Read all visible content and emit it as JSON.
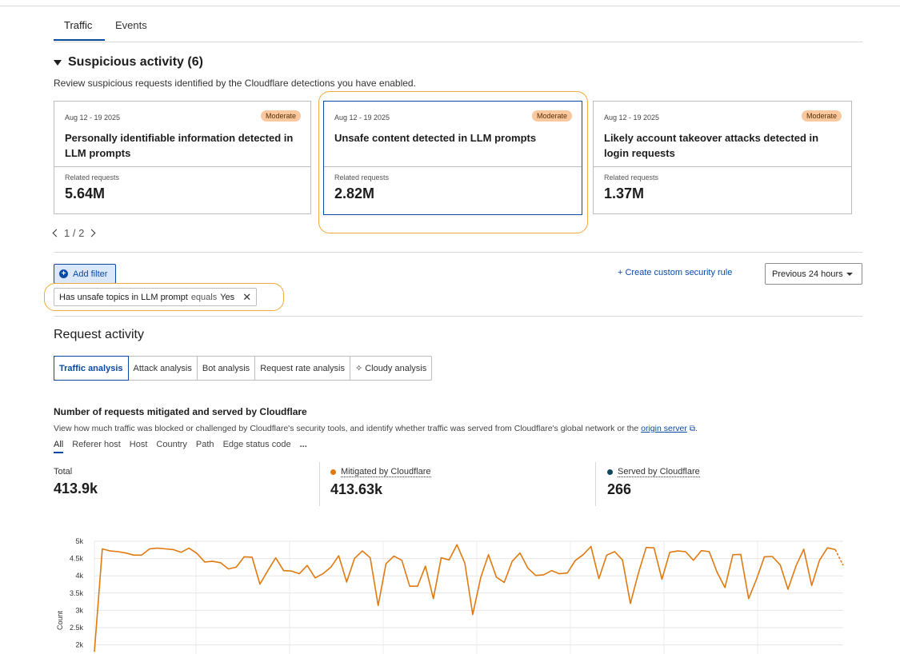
{
  "tabs": [
    {
      "label": "Traffic",
      "active": true
    },
    {
      "label": "Events",
      "active": false
    }
  ],
  "suspicious": {
    "heading": "Suspicious activity (6)",
    "description": "Review suspicious requests identified by the Cloudflare detections you have enabled.",
    "cards": [
      {
        "date": "Aug 12 - 19 2025",
        "badge": "Moderate",
        "title": "Personally identifiable information detected in LLM prompts",
        "related_label": "Related requests",
        "value": "5.64M"
      },
      {
        "date": "Aug 12 - 19 2025",
        "badge": "Moderate",
        "title": "Unsafe content detected in LLM prompts",
        "related_label": "Related requests",
        "value": "2.82M"
      },
      {
        "date": "Aug 12 - 19 2025",
        "badge": "Moderate",
        "title": "Likely account takeover attacks detected in login requests",
        "related_label": "Related requests",
        "value": "1.37M"
      }
    ],
    "pager": "1 / 2"
  },
  "filters": {
    "add_label": "Add filter",
    "chip": {
      "field": "Has unsafe topics in LLM prompt",
      "op": "equals",
      "value": "Yes"
    },
    "create_rule": "+ Create custom security rule",
    "time_range": "Previous 24 hours"
  },
  "request_activity": {
    "title": "Request activity",
    "segments": [
      "Traffic analysis",
      "Attack analysis",
      "Bot analysis",
      "Request rate analysis",
      "Cloudy analysis"
    ]
  },
  "chart_section": {
    "title": "Number of requests mitigated and served by Cloudflare",
    "desc": "View how much traffic was blocked or challenged by Cloudflare's security tools, and identify whether traffic was served from Cloudflare's global network or the",
    "link": "origin server",
    "desc_end": ".",
    "subtabs": [
      "All",
      "Referer host",
      "Host",
      "Country",
      "Path",
      "Edge status code",
      "..."
    ],
    "metrics": [
      {
        "label": "Total",
        "value": "413.9k"
      },
      {
        "label": "Mitigated by Cloudflare",
        "value": "413.63k",
        "color": "#e07a10"
      },
      {
        "label": "Served by Cloudflare",
        "value": "266",
        "color": "#12465a"
      }
    ]
  },
  "chart_data": {
    "type": "line",
    "ylabel": "Count",
    "yticks": [
      "2k",
      "2.5k",
      "3k",
      "3.5k",
      "4k",
      "4.5k",
      "5k"
    ],
    "ylim": [
      2000,
      5000
    ],
    "series": [
      {
        "name": "Mitigated by Cloudflare",
        "color": "#e07a10",
        "values": [
          1800,
          4780,
          4720,
          4700,
          4660,
          4600,
          4600,
          4780,
          4800,
          4780,
          4760,
          4680,
          4800,
          4650,
          4400,
          4420,
          4380,
          4200,
          4250,
          4550,
          4540,
          3760,
          4150,
          4520,
          4150,
          4140,
          4060,
          4300,
          3940,
          4060,
          4250,
          4580,
          3820,
          4500,
          4720,
          4520,
          3140,
          4350,
          4570,
          4450,
          3700,
          3700,
          4280,
          3340,
          4520,
          4460,
          4900,
          4360,
          2880,
          3940,
          4610,
          3960,
          3810,
          4420,
          4660,
          4220,
          4010,
          4030,
          4150,
          4060,
          4080,
          4440,
          4610,
          4850,
          3920,
          4600,
          4700,
          4460,
          3200,
          4060,
          4820,
          4810,
          3900,
          4680,
          4720,
          4700,
          4450,
          4730,
          4700,
          4100,
          3660,
          4610,
          4620,
          3340,
          3900,
          4550,
          4560,
          4320,
          3610,
          4280,
          4770,
          3720,
          4450,
          4810,
          4760,
          4300
        ]
      }
    ]
  }
}
